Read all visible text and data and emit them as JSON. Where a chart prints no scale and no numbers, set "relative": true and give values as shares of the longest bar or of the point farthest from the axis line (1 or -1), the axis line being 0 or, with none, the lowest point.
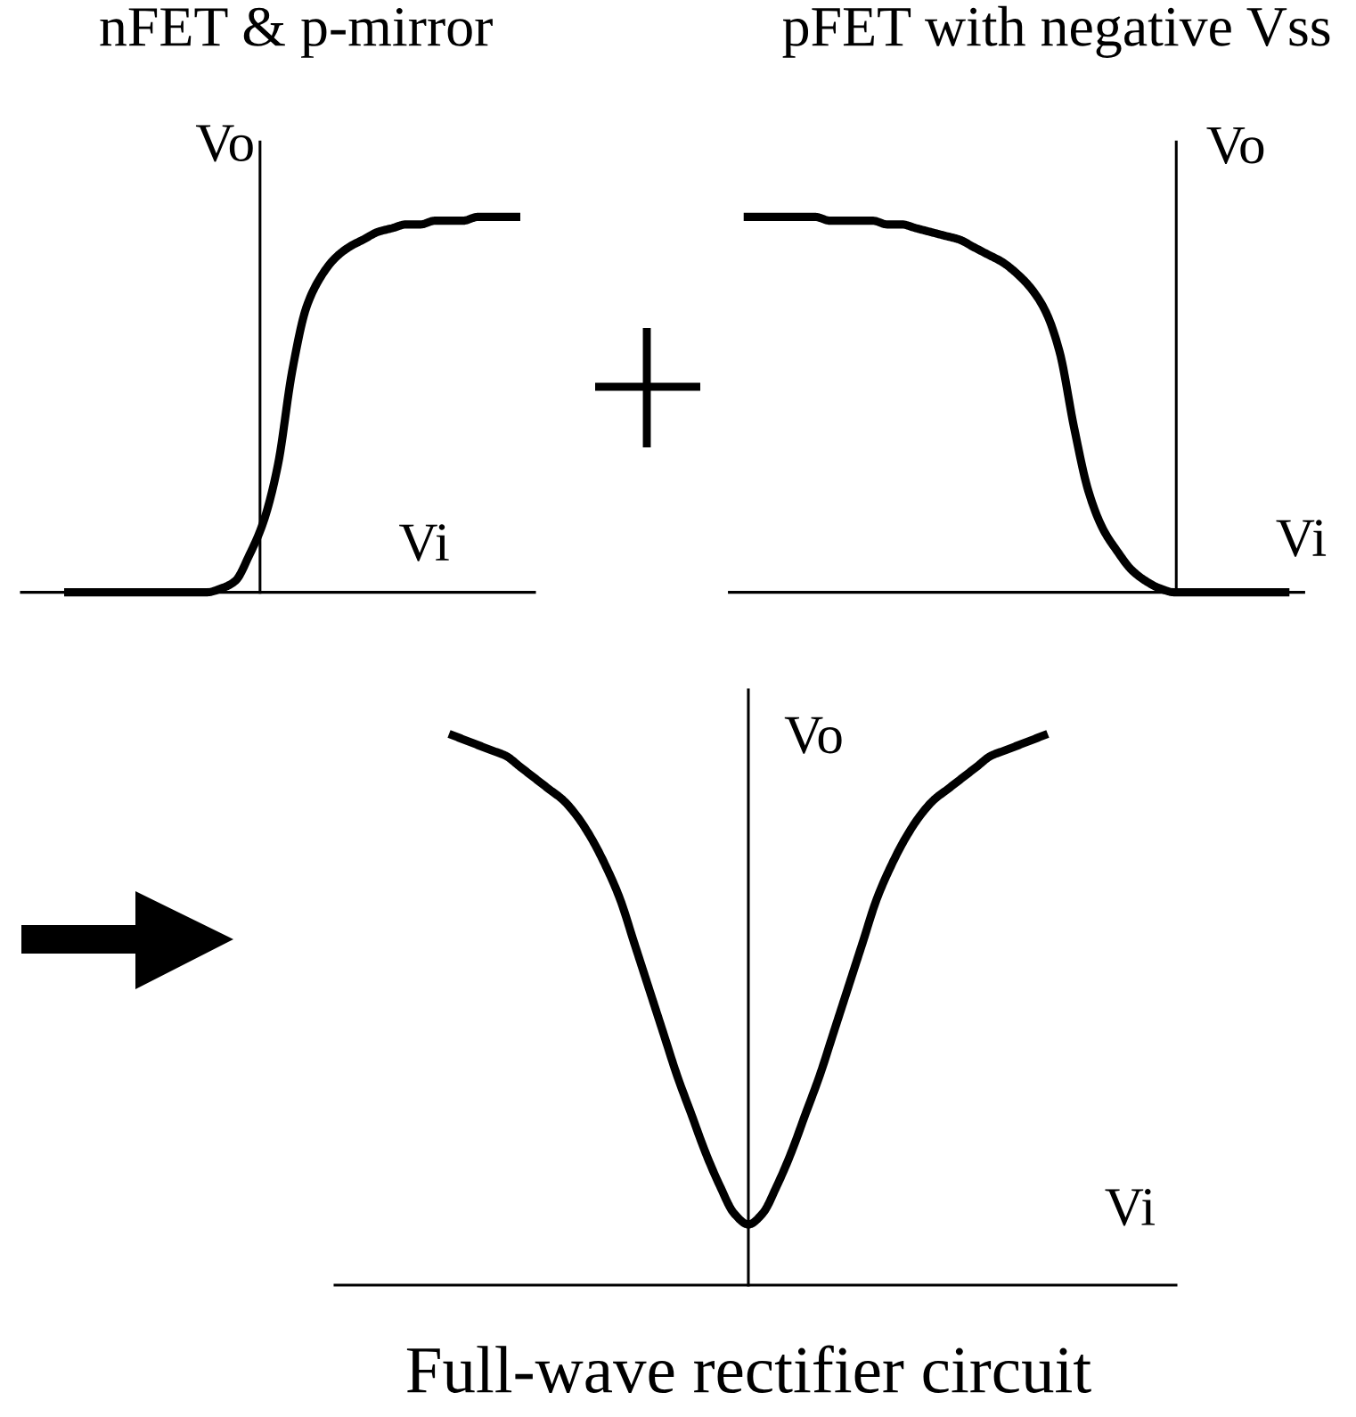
{
  "chart_data": [
    {
      "type": "line",
      "title": "nFET & p-mirror",
      "xlabel": "Vi",
      "ylabel": "Vo",
      "relative": true,
      "categories": [
        null,
        null,
        null,
        null,
        null,
        null,
        null,
        null,
        null,
        null,
        null,
        null,
        null,
        null,
        null,
        null,
        null,
        null,
        null,
        null,
        null,
        null,
        null,
        null,
        null,
        null,
        null,
        null,
        null,
        null,
        null,
        null,
        null,
        null,
        null,
        null,
        null
      ],
      "series": [
        {
          "color": "#000000",
          "values": [
            null,
            null,
            null,
            0,
            0,
            0,
            0,
            0,
            0,
            0,
            0,
            0,
            0,
            0,
            0.01,
            0.03,
            0.1,
            0.19,
            0.34,
            0.59,
            0.76,
            0.84,
            0.89,
            0.92,
            0.94,
            0.96,
            0.97,
            0.98,
            0.98,
            0.99,
            0.99,
            0.99,
            1,
            1,
            1,
            1,
            null
          ]
        }
      ]
    },
    {
      "type": "line",
      "title": "pFET with negative Vss",
      "xlabel": "Vi",
      "ylabel": "Vo",
      "relative": true,
      "categories": [
        null,
        null,
        null,
        null,
        null,
        null,
        null,
        null,
        null,
        null,
        null,
        null,
        null,
        null,
        null,
        null,
        null,
        null,
        null,
        null,
        null,
        null,
        null,
        null,
        null,
        null,
        null,
        null,
        null,
        null,
        null,
        null,
        null,
        null,
        null,
        null,
        null,
        null,
        null,
        null,
        null
      ],
      "series": [
        {
          "color": "#000000",
          "values": [
            null,
            1,
            1,
            1,
            1,
            1,
            1,
            0.99,
            0.99,
            0.99,
            0.99,
            0.98,
            0.98,
            0.97,
            0.96,
            0.95,
            0.94,
            0.92,
            0.9,
            0.88,
            0.85,
            0.81,
            0.75,
            0.64,
            0.44,
            0.27,
            0.17,
            0.11,
            0.06,
            0.03,
            0.01,
            0,
            0,
            0,
            0,
            0,
            0,
            0,
            0,
            0,
            null
          ]
        }
      ]
    },
    {
      "type": "line",
      "title": "Full-wave rectifier circuit",
      "xlabel": "Vi",
      "ylabel": "Vo",
      "relative": true,
      "categories": [
        null,
        null,
        null,
        null,
        null,
        null,
        null,
        null,
        null,
        null,
        null,
        null,
        null,
        null,
        null,
        null,
        null,
        null,
        null,
        null,
        null,
        null,
        null,
        null,
        null,
        null,
        null,
        null,
        null,
        null,
        null,
        null,
        null,
        null,
        null,
        null,
        null,
        null,
        null,
        null,
        null,
        null,
        null,
        null,
        null,
        null,
        null,
        null,
        null,
        null,
        null,
        null,
        null,
        null,
        null,
        null,
        null,
        null,
        null,
        null
      ],
      "series": [
        {
          "color": "#000000",
          "values": [
            null,
            null,
            null,
            null,
            null,
            null,
            null,
            null,
            1,
            0.99,
            0.98,
            0.97,
            0.96,
            0.94,
            0.92,
            0.9,
            0.88,
            0.85,
            0.81,
            0.76,
            0.7,
            0.62,
            0.54,
            0.46,
            0.38,
            0.31,
            0.24,
            0.18,
            0.13,
            0.11,
            0.13,
            0.18,
            0.24,
            0.31,
            0.38,
            0.46,
            0.54,
            0.62,
            0.7,
            0.76,
            0.81,
            0.85,
            0.88,
            0.9,
            0.92,
            0.94,
            0.96,
            0.97,
            0.98,
            0.99,
            1,
            null,
            null,
            null,
            null,
            null,
            null,
            null,
            null,
            null
          ]
        }
      ]
    }
  ]
}
